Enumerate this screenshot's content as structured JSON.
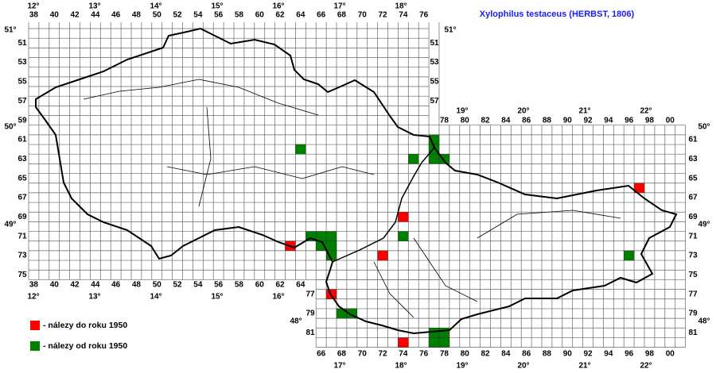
{
  "title": "Xylophilus testaceus (HERBST, 1806)",
  "col_labels_top_west": [
    "38",
    "40",
    "42",
    "44",
    "46",
    "48",
    "50",
    "52",
    "54",
    "56",
    "58",
    "60",
    "62",
    "64",
    "66",
    "68",
    "70",
    "72",
    "74",
    "76"
  ],
  "col_labels_top_east": [
    "78",
    "80",
    "82",
    "84",
    "86",
    "88",
    "90",
    "92",
    "94",
    "96",
    "98",
    "00"
  ],
  "col_labels_bottom_west": [
    "38",
    "40",
    "42",
    "44",
    "46",
    "48",
    "50",
    "52",
    "54",
    "56",
    "58",
    "60",
    "62",
    "64"
  ],
  "col_labels_bottom_south": [
    "66",
    "68",
    "70",
    "72",
    "74",
    "76",
    "78",
    "80",
    "82",
    "84",
    "86",
    "88",
    "90",
    "92",
    "94",
    "96",
    "98",
    "00"
  ],
  "row_labels_left": [
    "51",
    "53",
    "55",
    "57",
    "59",
    "61",
    "63",
    "65",
    "67",
    "69",
    "71",
    "73",
    "75"
  ],
  "row_labels_right_west": [
    "51",
    "53",
    "55",
    "57"
  ],
  "row_labels_right_east": [
    "61",
    "63",
    "65",
    "67",
    "69",
    "71",
    "73",
    "75",
    "77",
    "79",
    "81"
  ],
  "row_labels_left_south": [
    "77",
    "79",
    "81"
  ],
  "longitudes_top_west": [
    "12°",
    "13°",
    "14°",
    "15°",
    "16°",
    "17°",
    "18°"
  ],
  "longitudes_top_east": [
    "19°",
    "20°",
    "21°",
    "22°"
  ],
  "longitudes_bottom_west": [
    "12°",
    "13°",
    "14°",
    "15°",
    "16°"
  ],
  "longitudes_bottom_south": [
    "17°",
    "18°",
    "19°",
    "20°",
    "21°",
    "22°"
  ],
  "latitudes_left": [
    "51°",
    "50°",
    "49°",
    "48°"
  ],
  "latitudes_right": [
    "51°",
    "50°",
    "49°",
    "48°"
  ],
  "legend": [
    {
      "label": "- nálezy do roku 1950",
      "color": "#ff0000"
    },
    {
      "label": "- nálezy od roku 1950",
      "color": "#008000"
    }
  ],
  "records": [
    {
      "cells": [
        [
          63,
          72
        ],
        [
          74,
          69
        ],
        [
          72,
          73
        ],
        [
          97,
          66
        ],
        [
          67,
          77
        ],
        [
          74,
          82
        ]
      ]
    },
    {
      "cells": [
        [
          64,
          62
        ],
        [
          75,
          63
        ],
        [
          77,
          61
        ],
        [
          77,
          62
        ],
        [
          77,
          63
        ],
        [
          78,
          63
        ],
        [
          74,
          71
        ],
        [
          65,
          71
        ],
        [
          66,
          71
        ],
        [
          67,
          71
        ],
        [
          66,
          72
        ],
        [
          67,
          72
        ],
        [
          67,
          73
        ],
        [
          96,
          73
        ],
        [
          68,
          79
        ],
        [
          69,
          79
        ],
        [
          77,
          81
        ],
        [
          78,
          81
        ],
        [
          77,
          82
        ],
        [
          78,
          82
        ]
      ]
    }
  ]
}
